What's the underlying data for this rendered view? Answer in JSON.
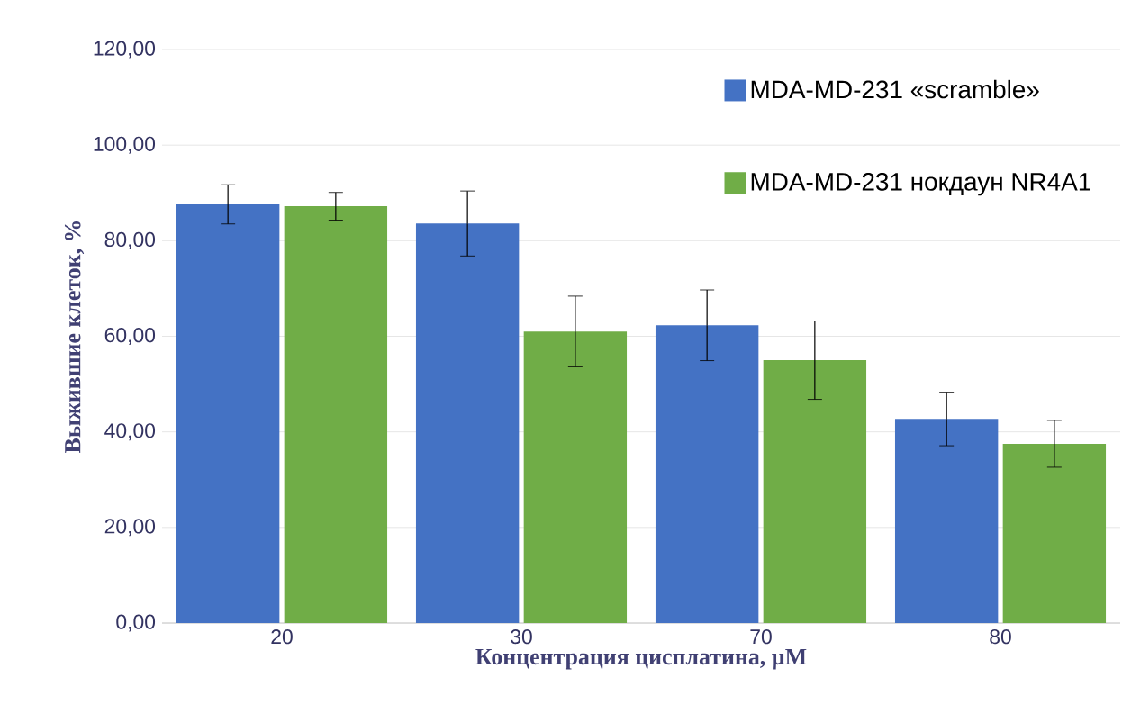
{
  "chart_data": {
    "type": "bar",
    "xlabel": "Концентрация цисплатина, µM",
    "ylabel": "Выжившие клеток, %",
    "categories": [
      "20",
      "30",
      "70",
      "80"
    ],
    "series": [
      {
        "name": "MDA-MD-231 «scramble»",
        "color": "#4472c4",
        "values": [
          87.6,
          83.6,
          62.3,
          42.7
        ],
        "errors": [
          4.1,
          6.8,
          7.4,
          5.6
        ]
      },
      {
        "name": "MDA-MD-231 нокдаун NR4A1",
        "color": "#70ad47",
        "values": [
          87.2,
          61.0,
          55.0,
          37.5
        ],
        "errors": [
          2.9,
          7.4,
          8.2,
          4.9
        ]
      }
    ],
    "ylim": [
      0,
      120
    ],
    "yticks": [
      {
        "value": 0,
        "label": "0,00"
      },
      {
        "value": 20,
        "label": "20,00"
      },
      {
        "value": 40,
        "label": "40,00"
      },
      {
        "value": 60,
        "label": "60,00"
      },
      {
        "value": 80,
        "label": "80,00"
      },
      {
        "value": 100,
        "label": "100,00"
      },
      {
        "value": 120,
        "label": "120,00"
      }
    ],
    "grid": "y",
    "legend": "top right"
  }
}
